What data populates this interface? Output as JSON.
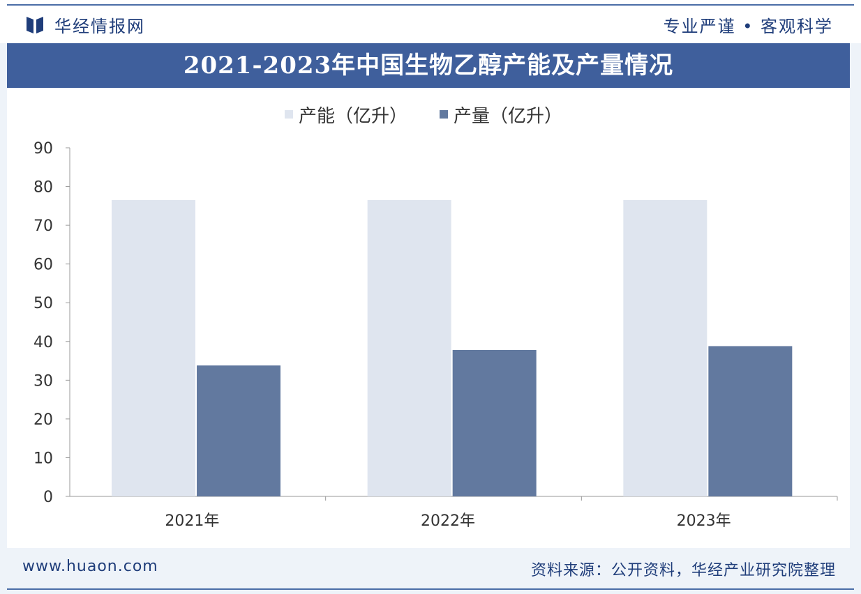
{
  "header": {
    "brand": "华经情报网",
    "slogan": "专业严谨 • 客观科学"
  },
  "colors": {
    "capacity": "#dfe5ef",
    "production": "#62799f",
    "title_bar": "#3f5f9c",
    "brand": "#1f3d7a"
  },
  "chart_data": {
    "type": "bar",
    "title": "2021-2023年中国生物乙醇产能及产量情况",
    "categories": [
      "2021年",
      "2022年",
      "2023年"
    ],
    "series": [
      {
        "name": "产能（亿升）",
        "values": [
          76.5,
          76.5,
          76.5
        ]
      },
      {
        "name": "产量（亿升）",
        "values": [
          33.8,
          37.8,
          38.8
        ]
      }
    ],
    "yticks": [
      "0",
      "10",
      "20",
      "30",
      "40",
      "50",
      "60",
      "70",
      "80",
      "90"
    ],
    "ylim": [
      0,
      90
    ],
    "grid": false,
    "legend_position": "top"
  },
  "footer": {
    "url": "www.huaon.com",
    "source": "资料来源：公开资料，华经产业研究院整理"
  }
}
